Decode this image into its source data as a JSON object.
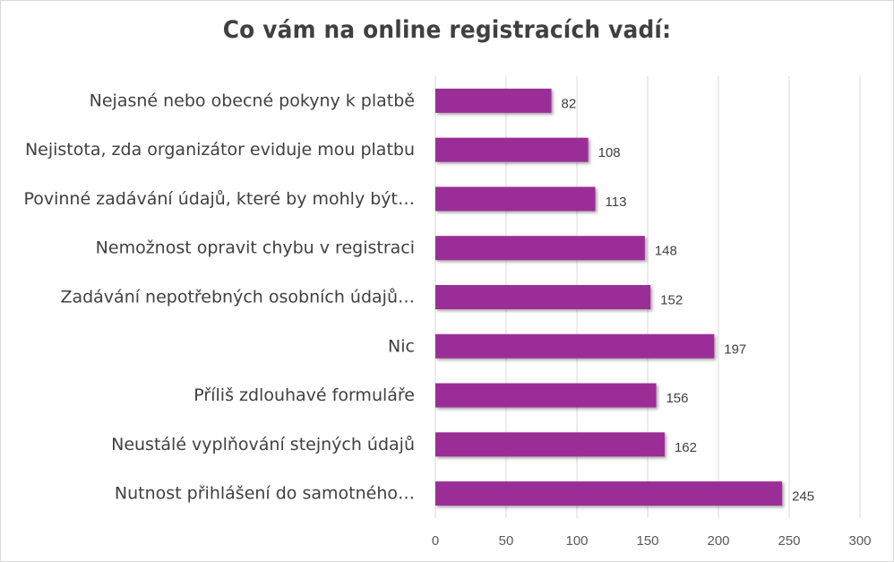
{
  "chart_data": {
    "type": "bar",
    "orientation": "horizontal",
    "title": "Co vám na online registracích vadí:",
    "categories": [
      "Nejasné nebo obecné pokyny k platbě",
      "Nejistota, zda organizátor eviduje mou platbu",
      "Povinné zadávání údajů, které by mohly být…",
      "Nemožnost opravit chybu v registraci",
      "Zadávání nepotřebných osobních údajů…",
      "Nic",
      "Příliš zdlouhavé formuláře",
      "Neustálé vyplňování stejných údajů",
      "Nutnost přihlášení do samotného…"
    ],
    "values": [
      82,
      108,
      113,
      148,
      152,
      197,
      156,
      162,
      245
    ],
    "xlim": [
      0,
      300
    ],
    "xticks": [
      0,
      50,
      100,
      150,
      200,
      250,
      300
    ],
    "xlabel": "",
    "ylabel": "",
    "grid": true,
    "bar_color": "#9b2d96",
    "grid_color": "#d9d9d9"
  }
}
